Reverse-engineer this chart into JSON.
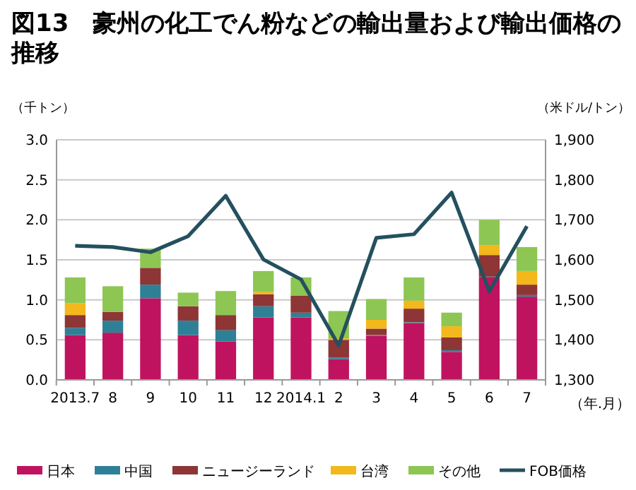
{
  "chart_data": {
    "type": "bar",
    "stacked": true,
    "title": "図13　豪州の化工でん粉などの輸出量および輸出価格の推移",
    "ylabel": "（千トン）",
    "y2label": "（米ドル/トン）",
    "xlabel": "（年.月）",
    "categories": [
      "2013.7",
      "8",
      "9",
      "10",
      "11",
      "12",
      "2014.1",
      "2",
      "3",
      "4",
      "5",
      "6",
      "7"
    ],
    "series": [
      {
        "name": "日本",
        "color": "#c0135f",
        "values": [
          0.56,
          0.59,
          1.02,
          0.56,
          0.48,
          0.78,
          0.78,
          0.26,
          0.55,
          0.71,
          0.35,
          1.28,
          1.04
        ]
      },
      {
        "name": "中国",
        "color": "#2e8097",
        "values": [
          0.09,
          0.15,
          0.17,
          0.18,
          0.14,
          0.14,
          0.06,
          0.02,
          0.01,
          0.01,
          0.02,
          0.01,
          0.02
        ]
      },
      {
        "name": "ニュージーランド",
        "color": "#8e3535",
        "values": [
          0.16,
          0.11,
          0.21,
          0.18,
          0.19,
          0.15,
          0.21,
          0.22,
          0.08,
          0.17,
          0.16,
          0.27,
          0.13
        ]
      },
      {
        "name": "台湾",
        "color": "#f2b81c",
        "values": [
          0.15,
          0,
          0,
          0,
          0,
          0.03,
          0,
          0.02,
          0.11,
          0.1,
          0.14,
          0.12,
          0.17
        ]
      },
      {
        "name": "その他",
        "color": "#8dc653",
        "values": [
          0.32,
          0.32,
          0.24,
          0.17,
          0.3,
          0.26,
          0.23,
          0.34,
          0.26,
          0.29,
          0.17,
          0.32,
          0.3
        ]
      },
      {
        "name": "FOB価格",
        "type": "line",
        "axis": "y2",
        "color": "#24505f",
        "values": [
          1635,
          1632,
          1619,
          1659,
          1760,
          1601,
          1551,
          1386,
          1655,
          1664,
          1768,
          1521,
          1684
        ]
      }
    ],
    "ylim": [
      0,
      3
    ],
    "yticks": [
      {
        "value": 0,
        "label": "0.0"
      },
      {
        "value": 0.5,
        "label": "0.5"
      },
      {
        "value": 1,
        "label": "1.0"
      },
      {
        "value": 1.5,
        "label": "1.5"
      },
      {
        "value": 2,
        "label": "2.0"
      },
      {
        "value": 2.5,
        "label": "2.5"
      },
      {
        "value": 3,
        "label": "3.0"
      }
    ],
    "y2lim": [
      1300,
      1900
    ],
    "y2ticks": [
      {
        "value": 1300,
        "label": "1,300"
      },
      {
        "value": 1400,
        "label": "1,400"
      },
      {
        "value": 1500,
        "label": "1,500"
      },
      {
        "value": 1600,
        "label": "1,600"
      },
      {
        "value": 1700,
        "label": "1,700"
      },
      {
        "value": 1800,
        "label": "1,800"
      },
      {
        "value": 1900,
        "label": "1,900"
      }
    ],
    "grid": "y",
    "legend": "bottom",
    "marker": "none"
  }
}
